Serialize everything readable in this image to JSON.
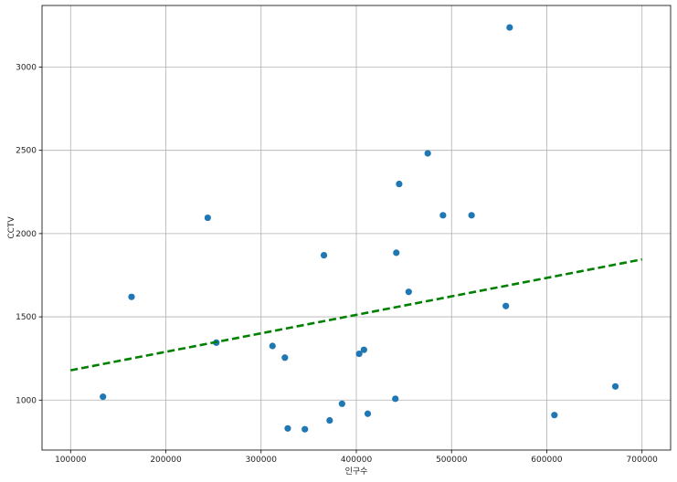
{
  "chart_data": {
    "type": "scatter",
    "title": "",
    "xlabel": "인구수",
    "ylabel": "CCTV",
    "xlim": [
      70000,
      730000
    ],
    "ylim": [
      700,
      3370
    ],
    "xticks": [
      100000,
      200000,
      300000,
      400000,
      500000,
      600000,
      700000
    ],
    "yticks": [
      1000,
      1500,
      2000,
      2500,
      3000
    ],
    "grid": true,
    "points": [
      {
        "x": 134000,
        "y": 1020
      },
      {
        "x": 164000,
        "y": 1620
      },
      {
        "x": 244000,
        "y": 2095
      },
      {
        "x": 253000,
        "y": 1345
      },
      {
        "x": 312000,
        "y": 1325
      },
      {
        "x": 325000,
        "y": 1255
      },
      {
        "x": 328000,
        "y": 830
      },
      {
        "x": 346000,
        "y": 825
      },
      {
        "x": 366000,
        "y": 1870
      },
      {
        "x": 372000,
        "y": 878
      },
      {
        "x": 385000,
        "y": 978
      },
      {
        "x": 403000,
        "y": 1278
      },
      {
        "x": 408000,
        "y": 1302
      },
      {
        "x": 412000,
        "y": 918
      },
      {
        "x": 441000,
        "y": 1008
      },
      {
        "x": 442000,
        "y": 1885
      },
      {
        "x": 445000,
        "y": 2298
      },
      {
        "x": 455000,
        "y": 1650
      },
      {
        "x": 475000,
        "y": 2482
      },
      {
        "x": 491000,
        "y": 2110
      },
      {
        "x": 521000,
        "y": 2110
      },
      {
        "x": 557000,
        "y": 1565
      },
      {
        "x": 561000,
        "y": 3238
      },
      {
        "x": 608000,
        "y": 910
      },
      {
        "x": 672000,
        "y": 1082
      }
    ],
    "trendline": {
      "x": [
        100000,
        700000
      ],
      "y": [
        1179,
        1845
      ],
      "color": "#008000",
      "style": "dashed"
    },
    "point_color": "#1f77b4"
  }
}
